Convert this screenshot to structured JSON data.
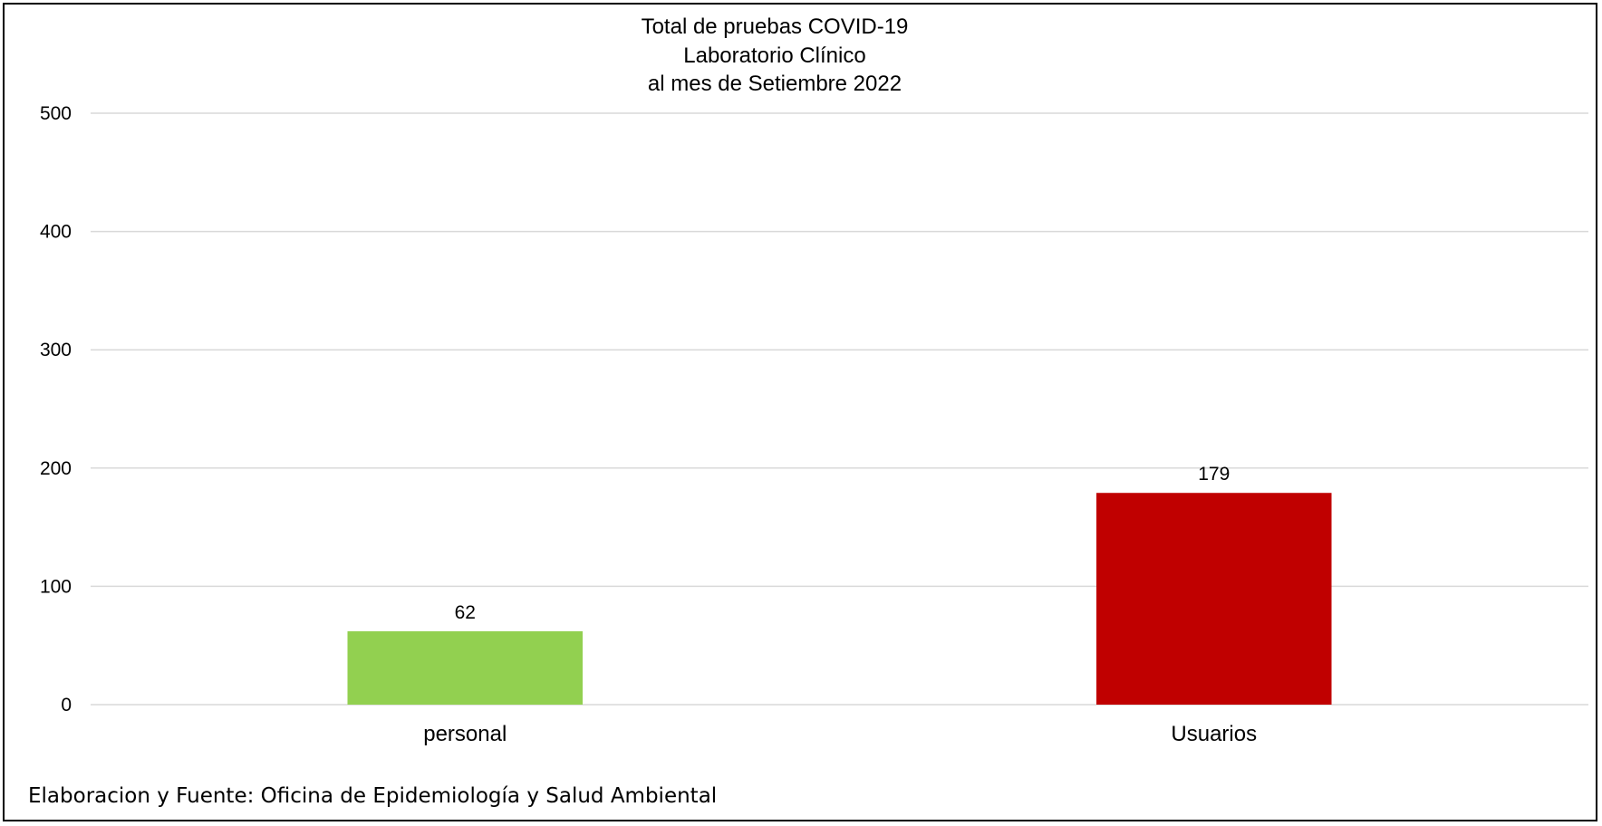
{
  "chart_data": {
    "type": "bar",
    "title_lines": [
      "Total de pruebas COVID-19",
      "Laboratorio Clínico",
      "al mes de Setiembre 2022"
    ],
    "categories": [
      "personal",
      "Usuarios"
    ],
    "values": [
      62,
      179
    ],
    "data_labels": [
      "62",
      "179"
    ],
    "colors": [
      "#92d050",
      "#c00000"
    ],
    "ylim": [
      0,
      500
    ],
    "yticks": [
      "0",
      "100",
      "200",
      "300",
      "400",
      "500"
    ],
    "grid": true,
    "xlabel": "",
    "ylabel": ""
  },
  "source_note": "Elaboracion y Fuente: Oficina de Epidemiología y Salud Ambiental"
}
